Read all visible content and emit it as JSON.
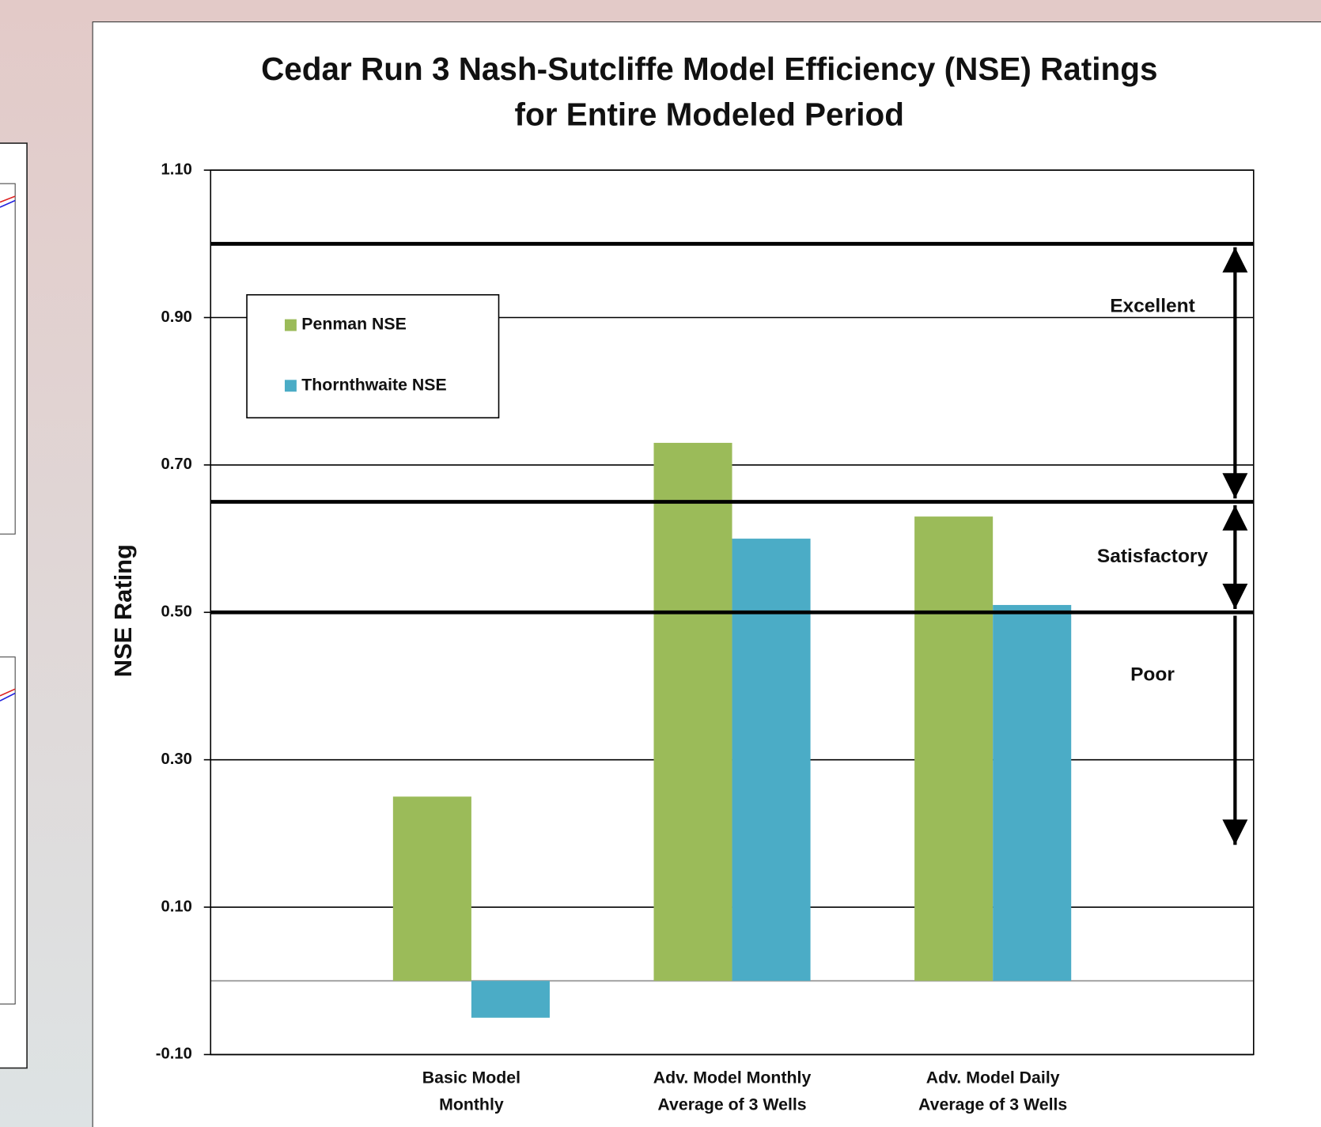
{
  "chart_data": {
    "type": "bar",
    "title": "Cedar Run 3 Nash-Sutcliffe Model Efficiency (NSE) Ratings\nfor Entire Modeled Period",
    "y_label": "NSE Rating",
    "categories": [
      "Basic Model\nMonthly",
      "Adv. Model Monthly\nAverage of 3 Wells",
      "Adv. Model Daily\nAverage of 3 Wells"
    ],
    "series": [
      {
        "name": "Penman NSE",
        "color": "#9bbb59",
        "values": [
          0.25,
          0.73,
          0.63
        ]
      },
      {
        "name": "Thornthwaite NSE",
        "color": "#4bacc6",
        "values": [
          -0.05,
          0.6,
          0.51
        ]
      }
    ],
    "ylim": [
      -0.1,
      1.1
    ],
    "yticks": [
      {
        "value": -0.1,
        "label": "-0.10"
      },
      {
        "value": 0.1,
        "label": "0.10"
      },
      {
        "value": 0.3,
        "label": "0.30"
      },
      {
        "value": 0.5,
        "label": "0.50"
      },
      {
        "value": 0.7,
        "label": "0.70"
      },
      {
        "value": 0.9,
        "label": "0.90"
      },
      {
        "value": 1.1,
        "label": "1.10"
      }
    ],
    "grid": true,
    "legend": "upper left",
    "ratings": [
      {
        "label": "Excellent",
        "range": [
          1.0,
          0.65
        ],
        "heads": "both"
      },
      {
        "label": "Satisfactory",
        "range": [
          0.65,
          0.5
        ],
        "heads": "both"
      },
      {
        "label": "Poor",
        "range": [
          0.5,
          0.18
        ],
        "heads": "end"
      }
    ]
  }
}
